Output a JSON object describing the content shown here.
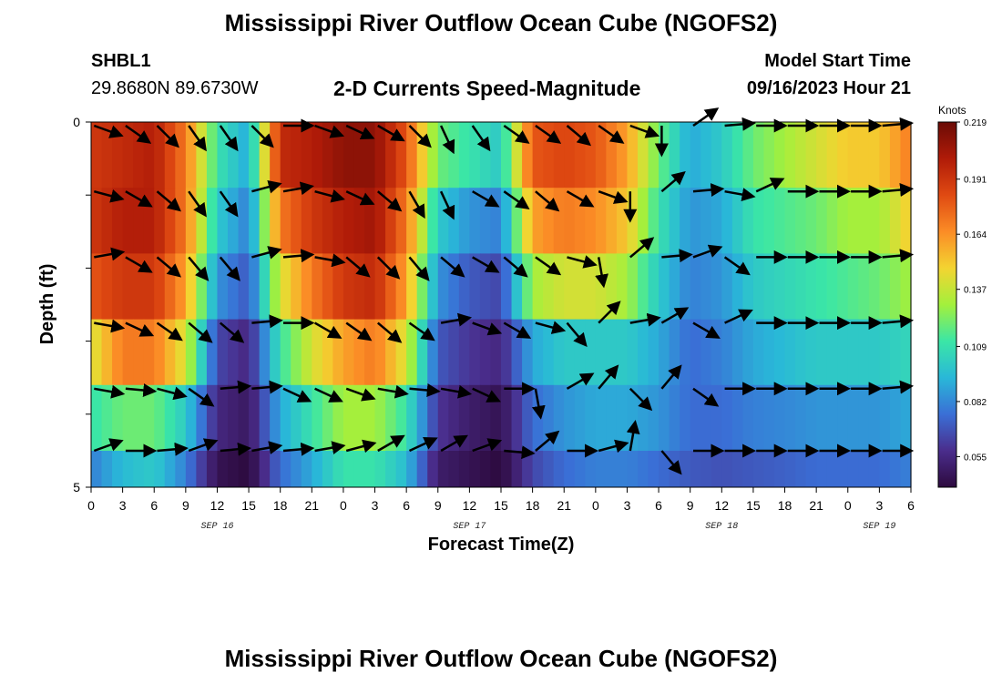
{
  "header": {
    "title": "Mississippi River Outflow Ocean Cube (NGOFS2)",
    "station_id": "SHBL1",
    "station_coords": "29.8680N  89.6730W",
    "subtitle": "2-D Currents Speed-Magnitude",
    "model_start_label": "Model Start Time",
    "model_start_value": "09/16/2023 Hour 21"
  },
  "footer": {
    "title": "Mississippi River Outflow Ocean Cube (NGOFS2)"
  },
  "colors": {
    "colormap": [
      "#2d0a3e",
      "#4a2d8c",
      "#3a6fd6",
      "#29b8d8",
      "#3be6a6",
      "#a3f03c",
      "#f3d431",
      "#fb8c26",
      "#e04a12",
      "#b01b08",
      "#6a0b06"
    ],
    "arrow": "#000000"
  },
  "chart_data": {
    "type": "heatmap",
    "xlabel": "Forecast Time(Z)",
    "ylabel": "Depth (ft)",
    "xlim": [
      0,
      78
    ],
    "ylim": [
      0,
      5
    ],
    "y_ticks": [
      "0",
      "",
      "",
      "",
      "",
      "5"
    ],
    "x_ticks": [
      "0",
      "3",
      "6",
      "9",
      "12",
      "15",
      "18",
      "21",
      "0",
      "3",
      "6",
      "9",
      "12",
      "15",
      "18",
      "21",
      "0",
      "3",
      "6",
      "9",
      "12",
      "15",
      "18",
      "21",
      "0",
      "3",
      "6"
    ],
    "date_labels": [
      {
        "text": "SEP 16",
        "hour": 12
      },
      {
        "text": "SEP 17",
        "hour": 36
      },
      {
        "text": "SEP 18",
        "hour": 60
      },
      {
        "text": "SEP 19",
        "hour": 75
      }
    ],
    "colorbar": {
      "unit": "Knots",
      "min": 0.04,
      "max": 0.219,
      "ticks": [
        0.219,
        0.191,
        0.164,
        0.137,
        0.109,
        0.082,
        0.055
      ]
    },
    "time_hours": [
      0,
      3,
      6,
      9,
      12,
      15,
      18,
      21,
      24,
      27,
      30,
      33,
      36,
      39,
      42,
      45,
      48,
      51,
      54,
      57,
      60,
      63,
      66,
      69,
      72,
      75,
      78
    ],
    "speed_layers": [
      {
        "layer": 1,
        "values": [
          0.19,
          0.195,
          0.2,
          0.17,
          0.11,
          0.09,
          0.195,
          0.2,
          0.21,
          0.21,
          0.18,
          0.12,
          0.11,
          0.1,
          0.18,
          0.185,
          0.18,
          0.16,
          0.12,
          0.09,
          0.1,
          0.12,
          0.13,
          0.14,
          0.15,
          0.15,
          0.17
        ]
      },
      {
        "layer": 2,
        "values": [
          0.19,
          0.2,
          0.2,
          0.17,
          0.1,
          0.08,
          0.17,
          0.19,
          0.2,
          0.205,
          0.17,
          0.1,
          0.085,
          0.08,
          0.16,
          0.17,
          0.165,
          0.15,
          0.11,
          0.085,
          0.09,
          0.11,
          0.115,
          0.12,
          0.13,
          0.13,
          0.15
        ]
      },
      {
        "layer": 3,
        "values": [
          0.18,
          0.19,
          0.19,
          0.16,
          0.085,
          0.07,
          0.14,
          0.17,
          0.19,
          0.195,
          0.16,
          0.085,
          0.07,
          0.065,
          0.13,
          0.14,
          0.14,
          0.13,
          0.1,
          0.08,
          0.085,
          0.1,
          0.105,
          0.11,
          0.115,
          0.12,
          0.13
        ]
      },
      {
        "layer": 4,
        "values": [
          0.14,
          0.17,
          0.17,
          0.14,
          0.065,
          0.055,
          0.11,
          0.14,
          0.16,
          0.17,
          0.14,
          0.07,
          0.06,
          0.055,
          0.09,
          0.1,
          0.1,
          0.1,
          0.09,
          0.075,
          0.08,
          0.09,
          0.095,
          0.1,
          0.1,
          0.1,
          0.105
        ]
      },
      {
        "layer": 5,
        "values": [
          0.11,
          0.12,
          0.12,
          0.1,
          0.055,
          0.048,
          0.09,
          0.11,
          0.13,
          0.13,
          0.11,
          0.06,
          0.05,
          0.045,
          0.075,
          0.085,
          0.09,
          0.09,
          0.085,
          0.075,
          0.075,
          0.08,
          0.082,
          0.085,
          0.085,
          0.085,
          0.09
        ]
      },
      {
        "layer": 6,
        "values": [
          0.08,
          0.095,
          0.1,
          0.08,
          0.045,
          0.04,
          0.075,
          0.09,
          0.11,
          0.11,
          0.095,
          0.05,
          0.045,
          0.04,
          0.065,
          0.075,
          0.08,
          0.08,
          0.075,
          0.07,
          0.068,
          0.07,
          0.072,
          0.075,
          0.075,
          0.075,
          0.08
        ]
      }
    ],
    "vector_direction_deg": [
      [
        -20,
        -35,
        -45,
        -55,
        -55,
        -45,
        0,
        -20,
        -25,
        -30,
        -45,
        -65,
        -55,
        -35,
        -35,
        -40,
        -35,
        -20,
        -90,
        35,
        5,
        0,
        0,
        0,
        0,
        5
      ],
      [
        -15,
        -30,
        -40,
        -55,
        -55,
        15,
        10,
        -15,
        -25,
        -40,
        -60,
        -65,
        -30,
        -35,
        -40,
        -30,
        -20,
        -90,
        40,
        5,
        -10,
        25,
        0,
        0,
        0,
        5
      ],
      [
        10,
        -30,
        -40,
        -50,
        -50,
        15,
        5,
        -10,
        -40,
        -45,
        -50,
        -40,
        -30,
        -40,
        -35,
        -15,
        -80,
        40,
        5,
        20,
        -35,
        0,
        0,
        0,
        0,
        5
      ],
      [
        -10,
        -25,
        -35,
        -40,
        -40,
        5,
        0,
        -30,
        -35,
        -40,
        -35,
        10,
        -20,
        -30,
        -15,
        -50,
        45,
        10,
        30,
        -30,
        25,
        0,
        0,
        0,
        0,
        5
      ],
      [
        -10,
        -5,
        -15,
        -35,
        5,
        5,
        -25,
        -25,
        -20,
        -10,
        -5,
        -10,
        -25,
        0,
        -80,
        30,
        50,
        -45,
        50,
        -35,
        0,
        0,
        0,
        0,
        0,
        5
      ],
      [
        20,
        0,
        5,
        20,
        5,
        10,
        5,
        10,
        15,
        30,
        25,
        30,
        20,
        -5,
        40,
        0,
        15,
        80,
        -50,
        0,
        0,
        0,
        0,
        0,
        0,
        0
      ]
    ]
  }
}
